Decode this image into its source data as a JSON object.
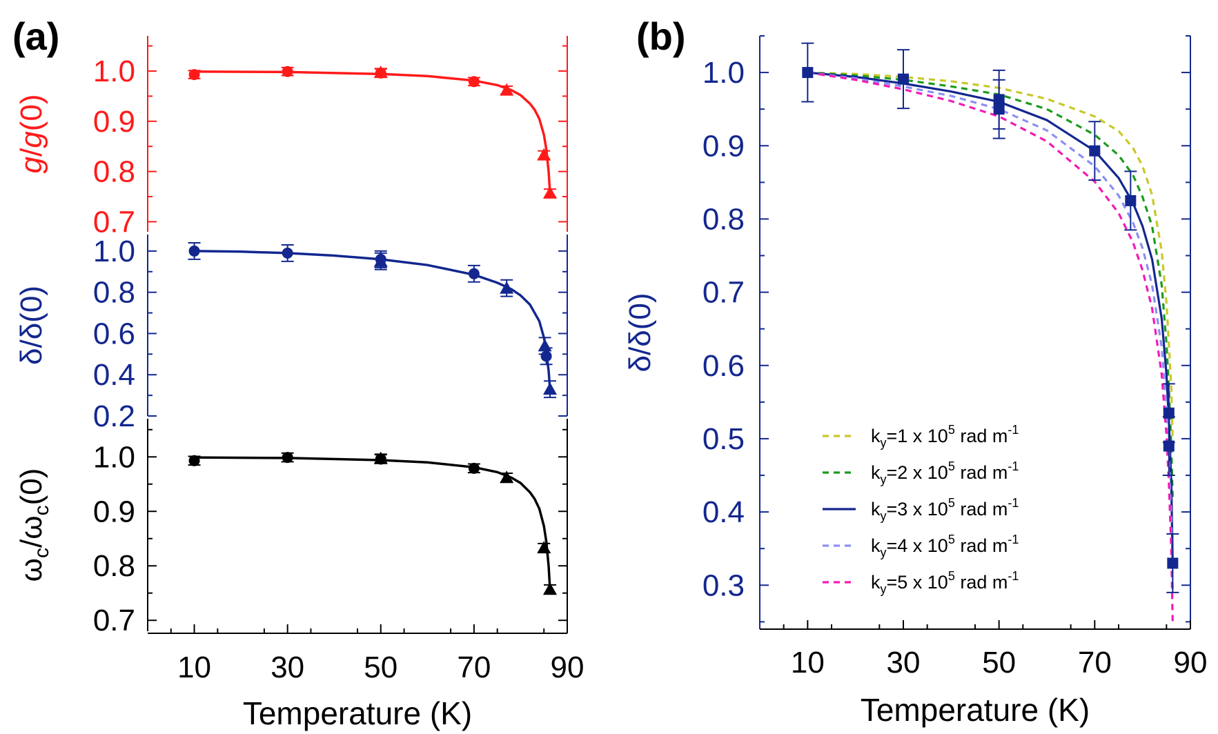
{
  "chart_data": [
    {
      "panel_label": "(a)",
      "type": "line",
      "xlabel": "Temperature (K)",
      "xlim": [
        0,
        90
      ],
      "xticks": [
        "10",
        "30",
        "50",
        "70",
        "90"
      ],
      "subplots": [
        {
          "ylabel": "g/g(0)",
          "color": "#ff1a1a",
          "ylim": [
            0.68,
            1.07
          ],
          "yticks": [
            "0.7",
            "0.8",
            "0.9",
            "1.0"
          ],
          "markers": [
            {
              "shape": "circle",
              "x": [
                10,
                30,
                50,
                70
              ],
              "y": [
                0.993,
                0.999,
                0.996,
                0.979
              ],
              "err": [
                0.008,
                0.008,
                0.008,
                0.008
              ]
            },
            {
              "shape": "triangle",
              "x": [
                50,
                77,
                85,
                86.3
              ],
              "y": [
                0.997,
                0.962,
                0.833,
                0.757
              ],
              "err": [
                0.008,
                0.008,
                0.008,
                0.008
              ]
            }
          ],
          "fit": {
            "x": [
              10,
              30,
              50,
              60,
              70,
              75,
              78,
              80,
              82,
              83,
              84,
              85,
              85.5,
              86,
              86.3
            ],
            "y": [
              0.999,
              0.998,
              0.994,
              0.99,
              0.981,
              0.972,
              0.962,
              0.952,
              0.935,
              0.923,
              0.905,
              0.873,
              0.845,
              0.8,
              0.757
            ]
          }
        },
        {
          "ylabel": "δ/δ(0)",
          "color": "#13278f",
          "ylim": [
            0.2,
            1.08
          ],
          "yticks": [
            "0.2",
            "0.4",
            "0.6",
            "0.8",
            "1.0"
          ],
          "markers": [
            {
              "shape": "circle",
              "x": [
                10,
                30,
                50,
                70,
                85.5
              ],
              "y": [
                1.0,
                0.99,
                0.96,
                0.89,
                0.49
              ],
              "err": [
                0.04,
                0.04,
                0.04,
                0.04,
                0.04
              ]
            },
            {
              "shape": "triangle",
              "x": [
                50,
                77,
                85.2,
                86.3
              ],
              "y": [
                0.95,
                0.82,
                0.54,
                0.33
              ],
              "err": [
                0.04,
                0.04,
                0.04,
                0.04
              ]
            }
          ],
          "fit": {
            "x": [
              10,
              20,
              30,
              40,
              50,
              60,
              70,
              75,
              78,
              80,
              82,
              84,
              85,
              85.5,
              86,
              86.3
            ],
            "y": [
              1.0,
              0.997,
              0.99,
              0.978,
              0.96,
              0.932,
              0.885,
              0.846,
              0.815,
              0.785,
              0.74,
              0.66,
              0.58,
              0.51,
              0.42,
              0.33
            ]
          }
        },
        {
          "ylabel": "ωc/ωc(0)",
          "color": "#000000",
          "ylim": [
            0.68,
            1.07
          ],
          "yticks": [
            "0.7",
            "0.8",
            "0.9",
            "1.0"
          ],
          "markers": [
            {
              "shape": "circle",
              "x": [
                10,
                30,
                50,
                70
              ],
              "y": [
                0.993,
                0.999,
                0.996,
                0.979
              ],
              "err": [
                0.008,
                0.008,
                0.008,
                0.008
              ]
            },
            {
              "shape": "triangle",
              "x": [
                50,
                77,
                85,
                86.3
              ],
              "y": [
                0.997,
                0.962,
                0.833,
                0.757
              ],
              "err": [
                0.008,
                0.008,
                0.008,
                0.008
              ]
            }
          ],
          "fit": {
            "x": [
              10,
              30,
              50,
              60,
              70,
              75,
              78,
              80,
              82,
              83,
              84,
              85,
              85.5,
              86,
              86.3
            ],
            "y": [
              0.999,
              0.998,
              0.994,
              0.99,
              0.981,
              0.972,
              0.962,
              0.952,
              0.935,
              0.923,
              0.905,
              0.873,
              0.845,
              0.8,
              0.757
            ]
          }
        }
      ]
    },
    {
      "panel_label": "(b)",
      "type": "line",
      "xlabel": "Temperature (K)",
      "ylabel": "δ/δ(0)",
      "xlim": [
        0,
        90
      ],
      "ylim": [
        0.24,
        1.05
      ],
      "xticks": [
        "10",
        "30",
        "50",
        "70",
        "90"
      ],
      "yticks": [
        "0.3",
        "0.4",
        "0.5",
        "0.6",
        "0.7",
        "0.8",
        "0.9",
        "1.0"
      ],
      "axis_color": "#13278f",
      "markers": {
        "shape": "square",
        "x": [
          10,
          30,
          50,
          50,
          70,
          77.5,
          85.5,
          85.5,
          86.3
        ],
        "y": [
          1.0,
          0.991,
          0.963,
          0.95,
          0.893,
          0.825,
          0.535,
          0.49,
          0.33
        ],
        "err": [
          0.04,
          0.04,
          0.04,
          0.04,
          0.04,
          0.04,
          0.04,
          0.04,
          0.04
        ],
        "color": "#13278f"
      },
      "series": [
        {
          "name": "ky=1 x 105 rad m-1",
          "label": {
            "pre": "k",
            "sub": "y",
            "mid": "=1 x 10",
            "sup": "5",
            "post": " rad m",
            "sup2": "-1"
          },
          "color": "#c8c82a",
          "dash": true,
          "x": [
            10,
            20,
            30,
            40,
            50,
            60,
            70,
            75,
            78,
            80,
            82,
            84,
            85,
            85.5,
            86,
            86.3
          ],
          "y": [
            1.0,
            0.998,
            0.994,
            0.988,
            0.979,
            0.964,
            0.94,
            0.92,
            0.897,
            0.872,
            0.833,
            0.756,
            0.686,
            0.63,
            0.57,
            0.5
          ]
        },
        {
          "name": "ky=2 x 105 rad m-1",
          "label": {
            "pre": "k",
            "sub": "y",
            "mid": "=2 x 10",
            "sup": "5",
            "post": " rad m",
            "sup2": "-1"
          },
          "color": "#1c9b1c",
          "dash": true,
          "x": [
            10,
            20,
            30,
            40,
            50,
            60,
            70,
            75,
            78,
            80,
            82,
            84,
            85,
            85.5,
            86,
            86.3
          ],
          "y": [
            1.0,
            0.996,
            0.99,
            0.981,
            0.97,
            0.95,
            0.915,
            0.887,
            0.86,
            0.83,
            0.79,
            0.71,
            0.63,
            0.57,
            0.49,
            0.42
          ]
        },
        {
          "name": "ky=3 x 105 rad m-1",
          "label": {
            "pre": "k",
            "sub": "y",
            "mid": "=3 x 10",
            "sup": "5",
            "post": " rad m",
            "sup2": "-1"
          },
          "color": "#13278f",
          "dash": false,
          "x": [
            10,
            20,
            30,
            40,
            50,
            60,
            70,
            75,
            78,
            80,
            82,
            84,
            85,
            85.5,
            86,
            86.3
          ],
          "y": [
            1.0,
            0.994,
            0.985,
            0.974,
            0.96,
            0.935,
            0.893,
            0.856,
            0.822,
            0.79,
            0.745,
            0.664,
            0.588,
            0.525,
            0.44,
            0.33
          ]
        },
        {
          "name": "ky=4 x 105 rad m-1",
          "label": {
            "pre": "k",
            "sub": "y",
            "mid": "=4 x 10",
            "sup": "5",
            "post": " rad m",
            "sup2": "-1"
          },
          "color": "#8a8ff5",
          "dash": true,
          "x": [
            10,
            20,
            30,
            40,
            50,
            60,
            70,
            75,
            78,
            80,
            82,
            84,
            85,
            85.5,
            86,
            86.3
          ],
          "y": [
            1.0,
            0.992,
            0.981,
            0.968,
            0.95,
            0.921,
            0.872,
            0.832,
            0.795,
            0.76,
            0.71,
            0.625,
            0.545,
            0.48,
            0.39,
            0.29
          ]
        },
        {
          "name": "ky=5 x 105 rad m-1",
          "label": {
            "pre": "k",
            "sub": "y",
            "mid": "=5 x 10",
            "sup": "5",
            "post": " rad m",
            "sup2": "-1"
          },
          "color": "#f21ab5",
          "dash": true,
          "x": [
            10,
            20,
            30,
            40,
            50,
            60,
            70,
            75,
            78,
            80,
            82,
            84,
            85,
            85.5,
            86,
            86.3
          ],
          "y": [
            1.0,
            0.99,
            0.977,
            0.961,
            0.94,
            0.906,
            0.851,
            0.808,
            0.768,
            0.73,
            0.678,
            0.588,
            0.505,
            0.44,
            0.35,
            0.25
          ]
        }
      ]
    }
  ]
}
